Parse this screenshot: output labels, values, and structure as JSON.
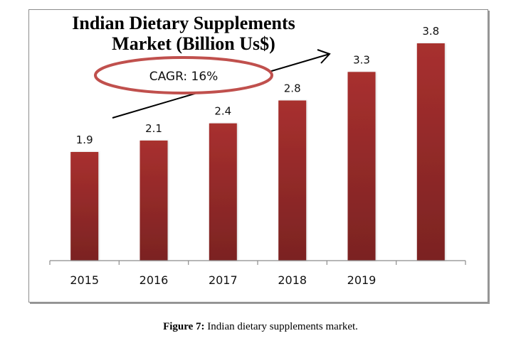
{
  "chart_data": {
    "type": "bar",
    "title_lines": [
      "Indian Dietary Supplements",
      "Market (Billion Us$)"
    ],
    "categories": [
      "2015",
      "2016",
      "2017",
      "2018",
      "2019",
      ""
    ],
    "values": [
      1.9,
      2.1,
      2.4,
      2.8,
      3.3,
      3.8
    ],
    "data_labels": [
      "1.9",
      "2.1",
      "2.4",
      "2.8",
      "3.3",
      "3.8"
    ],
    "xlabel": "",
    "ylabel": "",
    "ylim": [
      0,
      3.8
    ],
    "grid": false,
    "legend": "none",
    "annotation": {
      "text": "CAGR: 16%",
      "shape": "ellipse-with-trend-arrow"
    },
    "colors": {
      "bar_top": "#a8302f",
      "bar_bottom": "#7b2322",
      "ellipse": "#c0504d",
      "axis": "#8c8c8c"
    }
  },
  "caption": {
    "label": "Figure 7:",
    "text": " Indian dietary supplements market."
  }
}
